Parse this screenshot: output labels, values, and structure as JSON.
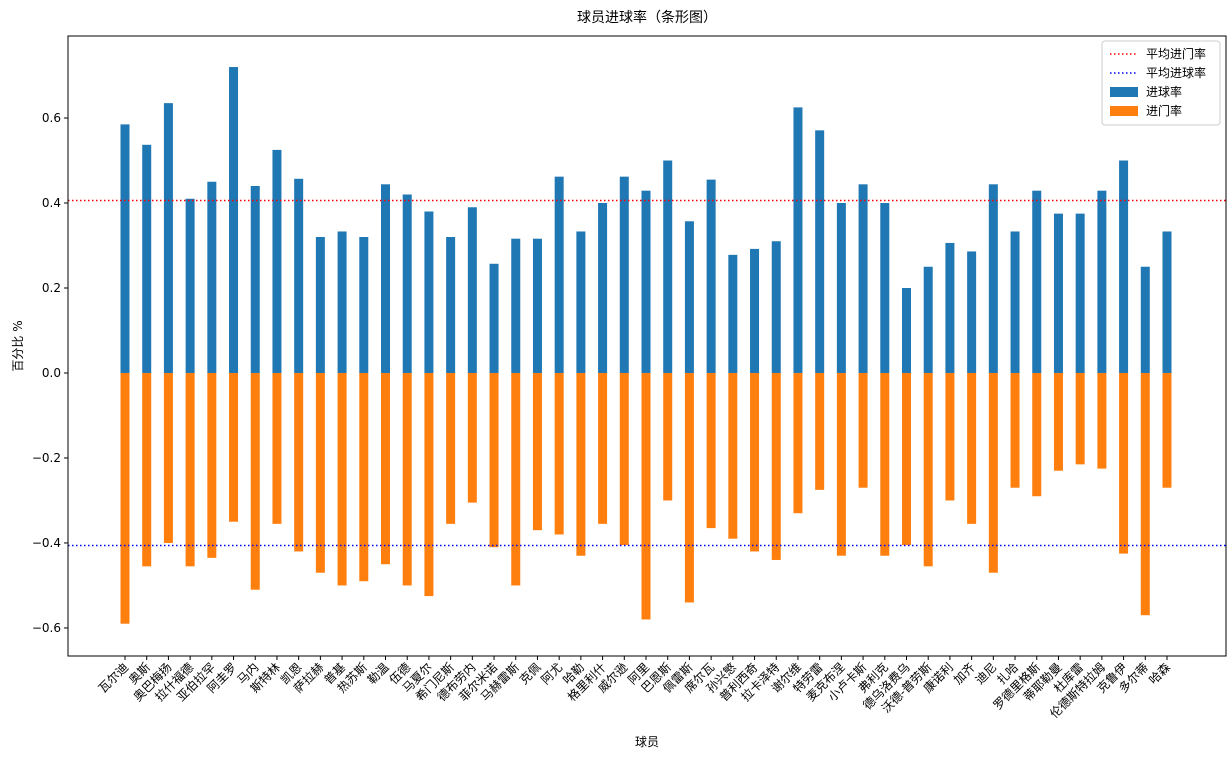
{
  "chart_data": {
    "type": "bar",
    "title": "球员进球率（条形图）",
    "x_label": "球员",
    "y_label": "百分比 %",
    "categories": [
      "瓦尔迪",
      "奥斯",
      "奥巴梅扬",
      "拉什福德",
      "亚伯拉罕",
      "阿圭罗",
      "马内",
      "斯特林",
      "凯恩",
      "萨拉赫",
      "普基",
      "热苏斯",
      "勒温",
      "伍德",
      "马夏尔",
      "希门尼斯",
      "德布劳内",
      "菲尔米诺",
      "马赫雷斯",
      "克佩",
      "阿尤",
      "哈勒",
      "格里利什",
      "威尔逊",
      "阿里",
      "巴恩斯",
      "佩雷斯",
      "席尔瓦",
      "孙兴慜",
      "普利西奇",
      "拉卡泽特",
      "谢尔维",
      "特劳雷",
      "麦克布涅",
      "小卢卡斯",
      "弗利克",
      "德乌洛费乌",
      "沃德-普劳斯",
      "康诺利",
      "加齐",
      "迪尼",
      "扎哈",
      "罗德里格斯",
      "蒂耶勒曼",
      "杜库雷",
      "伦德斯特拉姆",
      "克鲁伊",
      "多尔蒂",
      "哈森"
    ],
    "series": [
      {
        "name": "进球率",
        "color": "#1f77b4",
        "values": [
          0.585,
          0.537,
          0.635,
          0.41,
          0.45,
          0.72,
          0.44,
          0.525,
          0.457,
          0.32,
          0.333,
          0.32,
          0.444,
          0.42,
          0.38,
          0.32,
          0.39,
          0.257,
          0.316,
          0.316,
          0.462,
          0.333,
          0.4,
          0.462,
          0.429,
          0.5,
          0.357,
          0.455,
          0.278,
          0.292,
          0.31,
          0.625,
          0.571,
          0.4,
          0.444,
          0.4,
          0.2,
          0.25,
          0.306,
          0.286,
          0.444,
          0.333,
          0.429,
          0.375,
          0.375,
          0.429,
          0.5,
          0.25,
          0.333
        ]
      },
      {
        "name": "进门率",
        "color": "#ff7f0e",
        "values": [
          -0.59,
          -0.455,
          -0.4,
          -0.455,
          -0.435,
          -0.35,
          -0.51,
          -0.355,
          -0.42,
          -0.47,
          -0.5,
          -0.49,
          -0.45,
          -0.5,
          -0.525,
          -0.355,
          -0.305,
          -0.41,
          -0.5,
          -0.37,
          -0.38,
          -0.43,
          -0.355,
          -0.405,
          -0.58,
          -0.3,
          -0.54,
          -0.365,
          -0.39,
          -0.42,
          -0.44,
          -0.33,
          -0.275,
          -0.43,
          -0.27,
          -0.43,
          -0.405,
          -0.455,
          -0.3,
          -0.355,
          -0.47,
          -0.27,
          -0.29,
          -0.23,
          -0.215,
          -0.225,
          -0.425,
          -0.57,
          -0.27
        ]
      }
    ],
    "reference_lines": [
      {
        "name": "平均进门率",
        "color": "#ff0000",
        "value": 0.406
      },
      {
        "name": "平均进球率",
        "color": "#0000ff",
        "value": -0.406
      }
    ],
    "ylim": [
      -0.666,
      0.793
    ],
    "yticks": [
      {
        "value": -0.6,
        "label": "−0.6"
      },
      {
        "value": -0.4,
        "label": "−0.4"
      },
      {
        "value": -0.2,
        "label": "−0.2"
      },
      {
        "value": 0,
        "label": "0.0"
      },
      0.2,
      0.4,
      0.6
    ],
    "legend": "upper right"
  }
}
